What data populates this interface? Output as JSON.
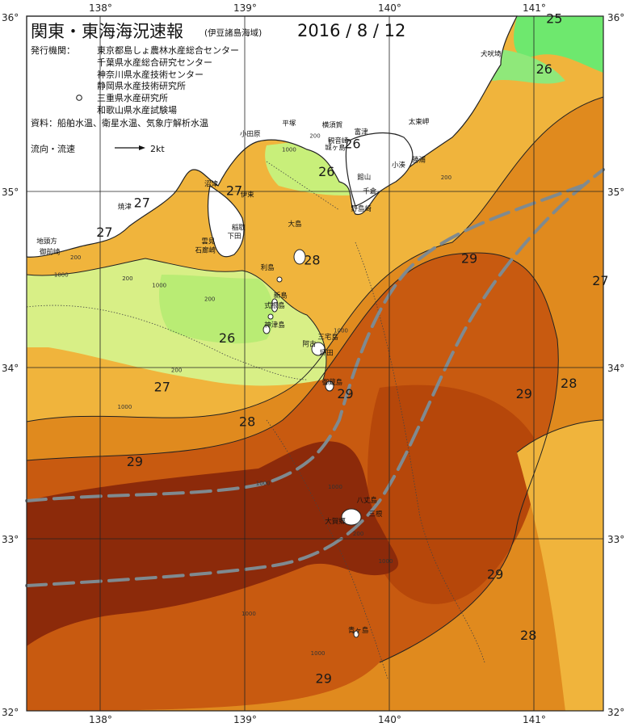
{
  "header": {
    "title": "関東・東海海況速報",
    "region": "(伊豆諸島海域)",
    "date": "2016 / 8 / 12"
  },
  "issuers": {
    "label": "発行機関：",
    "lines": [
      "東京都島しょ農林水産総合センター",
      "千葉県水産総合研究センター",
      "神奈川県水産技術センター",
      "静岡県水産技術研究所",
      "三重県水産研究所",
      "和歌山県水産試験場"
    ]
  },
  "sources": {
    "text": "資料：船舶水温、衛星水温、気象庁解析水温"
  },
  "legend": {
    "label": "流向・流速",
    "speed": "2kt"
  },
  "axes": {
    "lon_ticks": [
      "138°",
      "139°",
      "140°",
      "141°"
    ],
    "lat_ticks": [
      "36°",
      "35°",
      "34°",
      "33°",
      "32°"
    ]
  },
  "map_data": {
    "type": "sea-surface-temperature",
    "lon_range": [
      137.5,
      141.5
    ],
    "lat_range": [
      32,
      36
    ],
    "temperature_colors": {
      "25": "#6ee86e",
      "26": "#c8ef7a",
      "27": "#f0b43c",
      "28": "#e08a1e",
      "29": "#c85a10",
      "30": "#8c2a0a"
    },
    "stream_color": "#7f8a90",
    "isotherm_labels": [
      {
        "text": "25",
        "lon": 141.16,
        "lat": 35.96
      },
      {
        "text": "26",
        "lon": 141.09,
        "lat": 35.67
      },
      {
        "text": "26",
        "lon": 139.76,
        "lat": 35.24
      },
      {
        "text": "26",
        "lon": 139.58,
        "lat": 35.08
      },
      {
        "text": "27",
        "lon": 138.3,
        "lat": 34.9
      },
      {
        "text": "27",
        "lon": 138.94,
        "lat": 34.97
      },
      {
        "text": "27",
        "lon": 138.04,
        "lat": 34.73
      },
      {
        "text": "28",
        "lon": 139.48,
        "lat": 34.57
      },
      {
        "text": "29",
        "lon": 140.57,
        "lat": 34.58
      },
      {
        "text": "27",
        "lon": 141.48,
        "lat": 34.45
      },
      {
        "text": "26",
        "lon": 138.89,
        "lat": 34.12
      },
      {
        "text": "27",
        "lon": 138.44,
        "lat": 33.84
      },
      {
        "text": "29",
        "lon": 139.71,
        "lat": 33.8
      },
      {
        "text": "29",
        "lon": 140.95,
        "lat": 33.8
      },
      {
        "text": "28",
        "lon": 141.26,
        "lat": 33.86
      },
      {
        "text": "28",
        "lon": 139.03,
        "lat": 33.64
      },
      {
        "text": "29",
        "lon": 138.25,
        "lat": 33.41
      },
      {
        "text": "29",
        "lon": 140.75,
        "lat": 32.76
      },
      {
        "text": "28",
        "lon": 140.98,
        "lat": 32.41
      },
      {
        "text": "29",
        "lon": 139.56,
        "lat": 32.16
      }
    ],
    "place_labels": [
      {
        "text": "犬吠埼",
        "lon": 140.72,
        "lat": 35.77
      },
      {
        "text": "太東岬",
        "lon": 140.22,
        "lat": 35.38
      },
      {
        "text": "勝浦",
        "lon": 140.22,
        "lat": 35.16
      },
      {
        "text": "小湊",
        "lon": 140.08,
        "lat": 35.13
      },
      {
        "text": "富津",
        "lon": 139.82,
        "lat": 35.32
      },
      {
        "text": "観音崎",
        "lon": 139.66,
        "lat": 35.27
      },
      {
        "text": "横須賀",
        "lon": 139.62,
        "lat": 35.36
      },
      {
        "text": "平塚",
        "lon": 139.32,
        "lat": 35.37
      },
      {
        "text": "城ヶ島",
        "lon": 139.64,
        "lat": 35.23
      },
      {
        "text": "小田原",
        "lon": 139.05,
        "lat": 35.31
      },
      {
        "text": "館山",
        "lon": 139.84,
        "lat": 35.06
      },
      {
        "text": "千倉",
        "lon": 139.88,
        "lat": 34.98
      },
      {
        "text": "野島崎",
        "lon": 139.82,
        "lat": 34.88
      },
      {
        "text": "沼津",
        "lon": 138.78,
        "lat": 35.02
      },
      {
        "text": "焼津",
        "lon": 138.18,
        "lat": 34.89
      },
      {
        "text": "伊東",
        "lon": 139.03,
        "lat": 34.96
      },
      {
        "text": "大島",
        "lon": 139.36,
        "lat": 34.79
      },
      {
        "text": "稲取",
        "lon": 138.97,
        "lat": 34.77
      },
      {
        "text": "下田",
        "lon": 138.94,
        "lat": 34.72
      },
      {
        "text": "雲見",
        "lon": 138.76,
        "lat": 34.69
      },
      {
        "text": "石廊崎",
        "lon": 138.74,
        "lat": 34.64
      },
      {
        "text": "地頭方",
        "lon": 137.64,
        "lat": 34.69
      },
      {
        "text": "御前崎",
        "lon": 137.66,
        "lat": 34.63
      },
      {
        "text": "利島",
        "lon": 139.17,
        "lat": 34.54
      },
      {
        "text": "新島",
        "lon": 139.26,
        "lat": 34.38
      },
      {
        "text": "式根島",
        "lon": 139.22,
        "lat": 34.32
      },
      {
        "text": "神津島",
        "lon": 139.22,
        "lat": 34.21
      },
      {
        "text": "三宅島",
        "lon": 139.59,
        "lat": 34.14
      },
      {
        "text": "阿古",
        "lon": 139.46,
        "lat": 34.1
      },
      {
        "text": "坪田",
        "lon": 139.58,
        "lat": 34.05
      },
      {
        "text": "御蔵島",
        "lon": 139.62,
        "lat": 33.88
      },
      {
        "text": "八丈島",
        "lon": 139.86,
        "lat": 33.2
      },
      {
        "text": "三根",
        "lon": 139.92,
        "lat": 33.12
      },
      {
        "text": "大賀郷",
        "lon": 139.64,
        "lat": 33.08
      },
      {
        "text": "青ヶ島",
        "lon": 139.8,
        "lat": 32.45
      }
    ],
    "depth_labels": [
      {
        "text": "1000",
        "lon": 139.32,
        "lat": 35.22
      },
      {
        "text": "200",
        "lon": 139.5,
        "lat": 35.3
      },
      {
        "text": "200",
        "lon": 140.41,
        "lat": 35.06
      },
      {
        "text": "200",
        "lon": 137.84,
        "lat": 34.6
      },
      {
        "text": "1000",
        "lon": 137.74,
        "lat": 34.5
      },
      {
        "text": "200",
        "lon": 138.2,
        "lat": 34.48
      },
      {
        "text": "1000",
        "lon": 138.42,
        "lat": 34.44
      },
      {
        "text": "200",
        "lon": 138.77,
        "lat": 34.36
      },
      {
        "text": "1000",
        "lon": 139.68,
        "lat": 34.18
      },
      {
        "text": "200",
        "lon": 138.54,
        "lat": 33.95
      },
      {
        "text": "1000",
        "lon": 138.18,
        "lat": 33.74
      },
      {
        "text": "1000",
        "lon": 139.14,
        "lat": 33.3
      },
      {
        "text": "1000",
        "lon": 139.64,
        "lat": 33.28
      },
      {
        "text": "200",
        "lon": 139.8,
        "lat": 33.01
      },
      {
        "text": "1000",
        "lon": 139.99,
        "lat": 32.85
      },
      {
        "text": "1000",
        "lon": 139.04,
        "lat": 32.55
      },
      {
        "text": "1000",
        "lon": 139.52,
        "lat": 32.32
      }
    ]
  }
}
